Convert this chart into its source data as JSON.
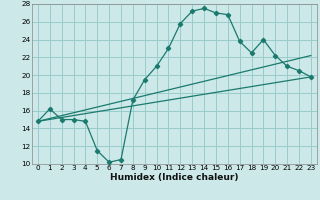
{
  "title": "",
  "xlabel": "Humidex (Indice chaleur)",
  "ylabel": "",
  "xlim": [
    -0.5,
    23.5
  ],
  "ylim": [
    10,
    28
  ],
  "xticks": [
    0,
    1,
    2,
    3,
    4,
    5,
    6,
    7,
    8,
    9,
    10,
    11,
    12,
    13,
    14,
    15,
    16,
    17,
    18,
    19,
    20,
    21,
    22,
    23
  ],
  "yticks": [
    10,
    12,
    14,
    16,
    18,
    20,
    22,
    24,
    26,
    28
  ],
  "background_color": "#cce8e8",
  "grid_color": "#99cccc",
  "line_color": "#1a7a6e",
  "line1_x": [
    0,
    1,
    2,
    3,
    4,
    5,
    6,
    7,
    8,
    9,
    10,
    11,
    12,
    13,
    14,
    15,
    16,
    17,
    18,
    19,
    20,
    21,
    22,
    23
  ],
  "line1_y": [
    14.8,
    16.2,
    15.0,
    15.0,
    14.8,
    11.5,
    10.2,
    10.5,
    17.2,
    19.5,
    21.0,
    23.0,
    25.8,
    27.2,
    27.5,
    27.0,
    26.8,
    23.8,
    22.5,
    24.0,
    22.2,
    21.0,
    20.5,
    19.8
  ],
  "line2_x": [
    0,
    23
  ],
  "line2_y": [
    14.8,
    19.8
  ],
  "line3_x": [
    0,
    23
  ],
  "line3_y": [
    14.8,
    22.2
  ],
  "axis_fontsize": 6.5,
  "tick_fontsize": 5.2
}
